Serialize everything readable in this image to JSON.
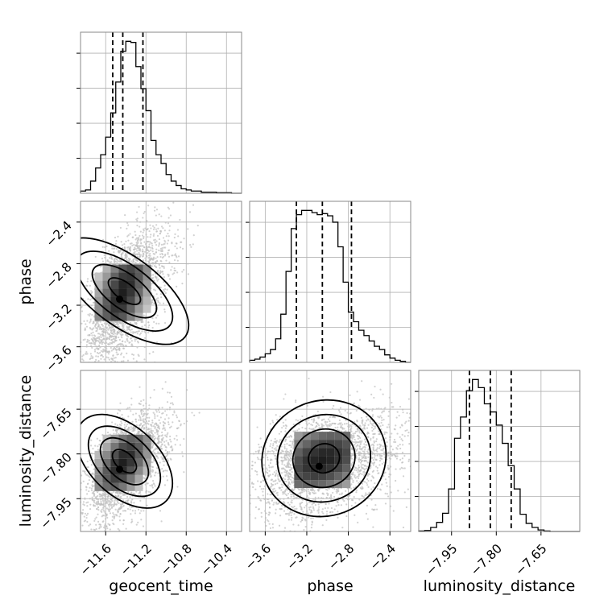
{
  "chart_data": {
    "type": "corner",
    "parameters": [
      "geocent_time",
      "phase",
      "luminosity_distance"
    ],
    "ranges": {
      "geocent_time": [
        -11.85,
        -10.25
      ],
      "phase": [
        -3.75,
        -2.2
      ],
      "luminosity_distance": [
        -8.06,
        -7.52
      ]
    },
    "ticks": {
      "geocent_time": [
        -11.6,
        -11.2,
        -10.8,
        -10.4
      ],
      "phase": [
        -3.6,
        -3.2,
        -2.8,
        -2.4
      ],
      "luminosity_distance": [
        -7.95,
        -7.8,
        -7.65
      ]
    },
    "tick_labels": {
      "geocent_time": [
        "−11.6",
        "−11.2",
        "−10.8",
        "−10.4"
      ],
      "phase": [
        "−3.6",
        "−3.2",
        "−2.8",
        "−2.4"
      ],
      "luminosity_distance": [
        "−7.95",
        "−7.80",
        "−7.65"
      ]
    },
    "axis_labels": {
      "geocent_time": "geocent_time",
      "phase": "phase",
      "luminosity_distance": "luminosity_distance"
    },
    "quantiles": {
      "geocent_time": [
        -11.53,
        -11.43,
        -11.23
      ],
      "phase": [
        -3.3,
        -3.05,
        -2.77
      ],
      "luminosity_distance": [
        -7.89,
        -7.82,
        -7.75
      ]
    },
    "histograms": {
      "geocent_time": {
        "edges": [
          -11.85,
          -11.8,
          -11.75,
          -11.7,
          -11.65,
          -11.6,
          -11.55,
          -11.5,
          -11.45,
          -11.4,
          -11.35,
          -11.3,
          -11.25,
          -11.2,
          -11.15,
          -11.1,
          -11.05,
          -11.0,
          -10.95,
          -10.9,
          -10.85,
          -10.8,
          -10.75,
          -10.7,
          -10.65,
          -10.6,
          -10.55,
          -10.5,
          -10.45,
          -10.4,
          -10.35,
          -10.3,
          -10.25
        ],
        "counts": [
          2,
          3,
          11,
          23,
          35,
          51,
          73,
          101,
          129,
          138,
          137,
          115,
          95,
          75,
          48,
          35,
          27,
          17,
          11,
          7,
          4,
          3,
          2,
          2,
          1,
          1,
          1,
          0.5,
          0.5,
          0.5,
          0,
          0
        ]
      },
      "phase": {
        "edges": [
          -3.75,
          -3.7,
          -3.65,
          -3.6,
          -3.55,
          -3.5,
          -3.45,
          -3.4,
          -3.35,
          -3.3,
          -3.25,
          -3.2,
          -3.15,
          -3.1,
          -3.05,
          -3.0,
          -2.95,
          -2.9,
          -2.85,
          -2.8,
          -2.75,
          -2.7,
          -2.65,
          -2.6,
          -2.55,
          -2.5,
          -2.45,
          -2.4,
          -2.35,
          -2.3,
          -2.25,
          -2.2
        ],
        "counts": [
          2,
          3,
          5,
          8,
          12,
          22,
          45,
          85,
          125,
          138,
          142,
          142,
          140,
          138,
          139,
          137,
          131,
          108,
          75,
          47,
          38,
          30,
          25,
          20,
          15,
          12,
          7,
          4,
          2,
          1,
          0
        ]
      },
      "luminosity_distance": {
        "edges": [
          -8.06,
          -8.04,
          -8.02,
          -8.0,
          -7.98,
          -7.96,
          -7.94,
          -7.92,
          -7.9,
          -7.88,
          -7.86,
          -7.84,
          -7.82,
          -7.8,
          -7.78,
          -7.76,
          -7.74,
          -7.72,
          -7.7,
          -7.68,
          -7.66,
          -7.64,
          -7.62,
          -7.6,
          -7.58,
          -7.56,
          -7.54,
          -7.52
        ],
        "counts": [
          0.5,
          1,
          4,
          9,
          18,
          42,
          92,
          113,
          139,
          150,
          142,
          126,
          118,
          105,
          87,
          65,
          42,
          17,
          8,
          4,
          1.5,
          0.5,
          0,
          0,
          0,
          0,
          0
        ]
      }
    },
    "contour_centers": {
      "phase|geocent_time": [
        -11.43,
        -3.08
      ],
      "luminosity_distance|geocent_time": [
        -11.43,
        -7.83
      ],
      "luminosity_distance|phase": [
        -3.05,
        -7.82
      ]
    },
    "samples_plotted_per_panel": 2600,
    "grid": true,
    "style": {
      "line_color": "#000000",
      "grid_color": "#b0b0b0",
      "sample_color": "#bfbfbf",
      "axis_color": "#888888"
    }
  }
}
